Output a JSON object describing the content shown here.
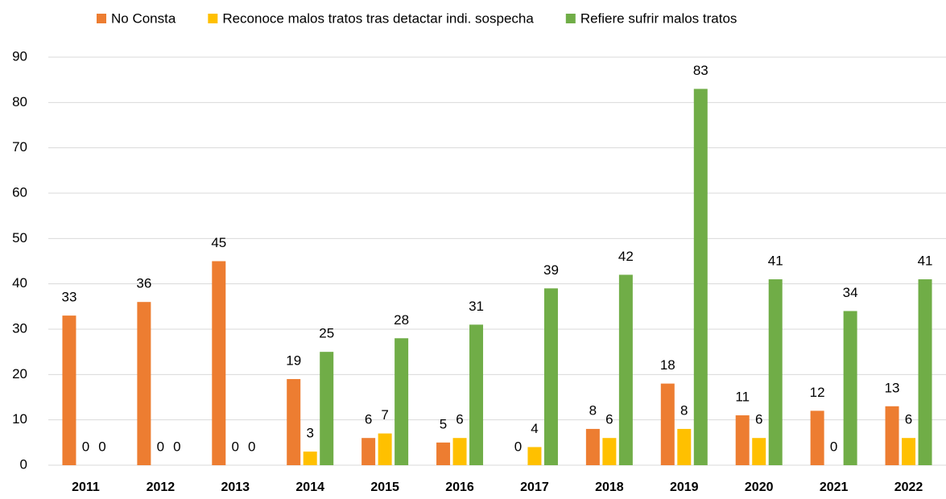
{
  "chart_data": {
    "type": "bar",
    "categories": [
      "2011",
      "2012",
      "2013",
      "2014",
      "2015",
      "2016",
      "2017",
      "2018",
      "2019",
      "2020",
      "2021",
      "2022"
    ],
    "series": [
      {
        "name": "No Consta",
        "color": "#ed7d31",
        "values": [
          33,
          36,
          45,
          19,
          6,
          5,
          0,
          8,
          18,
          11,
          12,
          13
        ]
      },
      {
        "name": "Reconoce malos tratos tras detactar indi. sospecha",
        "color": "#ffc000",
        "values": [
          0,
          0,
          0,
          3,
          7,
          6,
          4,
          6,
          8,
          6,
          0,
          6
        ]
      },
      {
        "name": "Refiere sufrir malos tratos",
        "color": "#70ad47",
        "values": [
          0,
          0,
          0,
          25,
          28,
          31,
          39,
          42,
          83,
          41,
          34,
          41
        ]
      }
    ],
    "ylim": [
      0,
      90
    ],
    "yticks": [
      0,
      10,
      20,
      30,
      40,
      50,
      60,
      70,
      80,
      90
    ],
    "grid": true,
    "legend": "top"
  }
}
